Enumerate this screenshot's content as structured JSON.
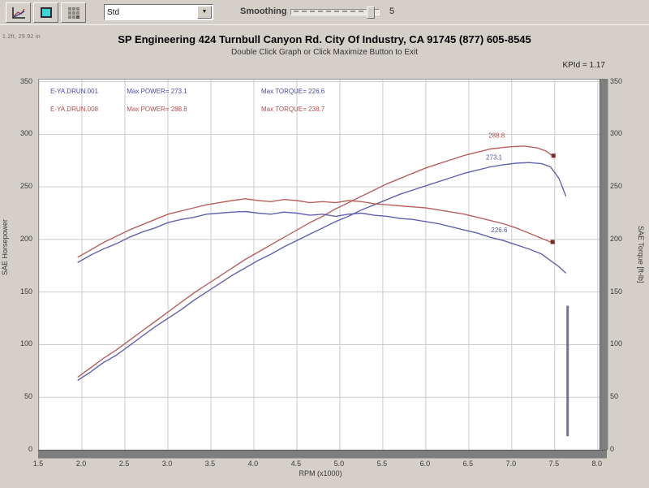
{
  "toolbar": {
    "dropdown_value": "Std",
    "smoothing_label": "Smoothing",
    "smoothing_value": "5"
  },
  "header": {
    "env_info": "1.2ft, 29.92 in",
    "title": "SP Engineering 424 Turnbull Canyon Rd. City Of Industry, CA 91745 (877) 605-8545",
    "subtitle": "Double Click Graph or Click Maximize Button to Exit",
    "correction": "KPId = 1.17"
  },
  "chart_data": {
    "type": "line",
    "xlabel": "RPM (x1000)",
    "ylabel_left": "SAE Horsepower",
    "ylabel_right": "SAE Torque [ft-lb]",
    "xlim": [
      1.5,
      8.03
    ],
    "ylim": [
      0,
      352
    ],
    "x_ticks": [
      1.5,
      2.0,
      2.5,
      3.0,
      3.5,
      4.0,
      4.5,
      5.0,
      5.5,
      6.0,
      6.5,
      7.0,
      7.5,
      8.0
    ],
    "y_ticks": [
      0,
      50,
      100,
      150,
      200,
      250,
      300,
      350
    ],
    "grid": true,
    "colors": {
      "red_run": "#b25452",
      "blue_run": "#5656a6",
      "spike": "#68688e",
      "red_marker": "#7a2828"
    },
    "legend": [
      {
        "file": "E-YA.DRUN.001",
        "power_label": "Max POWER= 273.1",
        "torque_label": "Max TORQUE= 226.6",
        "color": "#4a4aa0"
      },
      {
        "file": "E-YA.DRUN.008",
        "power_label": "Max POWER= 288.8",
        "torque_label": "Max TORQUE= 238.7",
        "color": "#b05050"
      }
    ],
    "series": [
      {
        "name": "power-run-001",
        "color": "#5656a6",
        "points": [
          [
            1.95,
            66
          ],
          [
            2.1,
            74
          ],
          [
            2.25,
            83
          ],
          [
            2.4,
            90
          ],
          [
            2.55,
            99
          ],
          [
            2.7,
            108
          ],
          [
            2.85,
            117
          ],
          [
            3.0,
            125
          ],
          [
            3.15,
            133
          ],
          [
            3.3,
            142
          ],
          [
            3.45,
            150
          ],
          [
            3.6,
            158
          ],
          [
            3.75,
            166
          ],
          [
            3.9,
            173
          ],
          [
            4.05,
            180
          ],
          [
            4.2,
            186
          ],
          [
            4.35,
            193
          ],
          [
            4.5,
            199
          ],
          [
            4.65,
            205
          ],
          [
            4.8,
            211
          ],
          [
            4.95,
            217
          ],
          [
            5.1,
            222
          ],
          [
            5.25,
            228
          ],
          [
            5.4,
            233
          ],
          [
            5.55,
            238
          ],
          [
            5.7,
            243
          ],
          [
            5.85,
            247
          ],
          [
            6.0,
            251
          ],
          [
            6.15,
            255
          ],
          [
            6.3,
            259
          ],
          [
            6.45,
            263
          ],
          [
            6.6,
            266
          ],
          [
            6.75,
            269
          ],
          [
            6.9,
            271
          ],
          [
            7.05,
            272.5
          ],
          [
            7.2,
            273.1
          ],
          [
            7.35,
            272
          ],
          [
            7.45,
            269
          ],
          [
            7.55,
            258
          ],
          [
            7.63,
            241
          ]
        ]
      },
      {
        "name": "power-run-008",
        "color": "#b25452",
        "points": [
          [
            1.95,
            69
          ],
          [
            2.1,
            78
          ],
          [
            2.25,
            87
          ],
          [
            2.4,
            95
          ],
          [
            2.55,
            104
          ],
          [
            2.7,
            113
          ],
          [
            2.85,
            122
          ],
          [
            3.0,
            131
          ],
          [
            3.15,
            140
          ],
          [
            3.3,
            149
          ],
          [
            3.45,
            157
          ],
          [
            3.6,
            165
          ],
          [
            3.75,
            173
          ],
          [
            3.9,
            181
          ],
          [
            4.05,
            188
          ],
          [
            4.2,
            195
          ],
          [
            4.35,
            202
          ],
          [
            4.5,
            209
          ],
          [
            4.65,
            216
          ],
          [
            4.8,
            222
          ],
          [
            4.95,
            229
          ],
          [
            5.1,
            235
          ],
          [
            5.25,
            241
          ],
          [
            5.4,
            247
          ],
          [
            5.55,
            253
          ],
          [
            5.7,
            258
          ],
          [
            5.85,
            263
          ],
          [
            6.0,
            268
          ],
          [
            6.15,
            272
          ],
          [
            6.3,
            276
          ],
          [
            6.45,
            280
          ],
          [
            6.6,
            283
          ],
          [
            6.75,
            286
          ],
          [
            6.9,
            287.5
          ],
          [
            7.05,
            288.5
          ],
          [
            7.15,
            288.8
          ],
          [
            7.3,
            287
          ],
          [
            7.4,
            284
          ],
          [
            7.5,
            278
          ]
        ]
      },
      {
        "name": "torque-run-001",
        "color": "#5656a6",
        "points": [
          [
            1.95,
            178
          ],
          [
            2.1,
            185
          ],
          [
            2.25,
            191
          ],
          [
            2.4,
            196
          ],
          [
            2.55,
            202
          ],
          [
            2.7,
            207
          ],
          [
            2.85,
            211
          ],
          [
            3.0,
            216
          ],
          [
            3.15,
            219
          ],
          [
            3.3,
            221
          ],
          [
            3.45,
            224
          ],
          [
            3.6,
            225
          ],
          [
            3.75,
            226
          ],
          [
            3.9,
            226.6
          ],
          [
            4.05,
            225
          ],
          [
            4.2,
            224
          ],
          [
            4.35,
            226
          ],
          [
            4.5,
            225
          ],
          [
            4.65,
            223
          ],
          [
            4.8,
            224
          ],
          [
            4.95,
            222
          ],
          [
            5.1,
            224
          ],
          [
            5.25,
            225
          ],
          [
            5.4,
            223
          ],
          [
            5.55,
            222
          ],
          [
            5.7,
            220
          ],
          [
            5.85,
            219
          ],
          [
            6.0,
            217
          ],
          [
            6.15,
            215
          ],
          [
            6.3,
            212
          ],
          [
            6.45,
            209
          ],
          [
            6.6,
            206
          ],
          [
            6.75,
            202
          ],
          [
            6.9,
            199
          ],
          [
            7.05,
            195
          ],
          [
            7.2,
            191
          ],
          [
            7.35,
            186
          ],
          [
            7.45,
            180
          ],
          [
            7.55,
            174
          ],
          [
            7.63,
            168
          ]
        ]
      },
      {
        "name": "torque-run-008",
        "color": "#b25452",
        "points": [
          [
            1.95,
            183
          ],
          [
            2.1,
            190
          ],
          [
            2.25,
            197
          ],
          [
            2.4,
            203
          ],
          [
            2.55,
            209
          ],
          [
            2.7,
            214
          ],
          [
            2.85,
            219
          ],
          [
            3.0,
            224
          ],
          [
            3.15,
            227
          ],
          [
            3.3,
            230
          ],
          [
            3.45,
            233
          ],
          [
            3.6,
            235
          ],
          [
            3.75,
            237
          ],
          [
            3.9,
            238.7
          ],
          [
            4.05,
            237
          ],
          [
            4.2,
            236
          ],
          [
            4.35,
            238
          ],
          [
            4.5,
            237
          ],
          [
            4.65,
            235
          ],
          [
            4.8,
            236
          ],
          [
            4.95,
            235
          ],
          [
            5.1,
            237
          ],
          [
            5.25,
            236
          ],
          [
            5.4,
            234
          ],
          [
            5.55,
            233
          ],
          [
            5.7,
            232
          ],
          [
            5.85,
            231
          ],
          [
            6.0,
            230
          ],
          [
            6.15,
            228
          ],
          [
            6.3,
            226
          ],
          [
            6.45,
            224
          ],
          [
            6.6,
            221
          ],
          [
            6.75,
            218
          ],
          [
            6.9,
            215
          ],
          [
            7.05,
            211
          ],
          [
            7.2,
            206
          ],
          [
            7.35,
            201
          ],
          [
            7.5,
            196
          ]
        ]
      },
      {
        "name": "run-end-spike",
        "color": "#68688e",
        "points": [
          [
            7.65,
            137
          ],
          [
            7.65,
            13
          ]
        ]
      }
    ],
    "annotations": [
      {
        "text": "288.8",
        "rpm": 6.73,
        "value": 297,
        "color": "#b05050"
      },
      {
        "text": "273.1",
        "rpm": 6.7,
        "value": 276,
        "color": "#5656a6"
      },
      {
        "text": "226.6",
        "rpm": 6.76,
        "value": 207,
        "color": "#5656a6"
      }
    ],
    "end_markers": [
      {
        "rpm": 7.48,
        "value": 280,
        "color": "#7a2828"
      },
      {
        "rpm": 7.47,
        "value": 198,
        "color": "#7a2828"
      }
    ]
  }
}
